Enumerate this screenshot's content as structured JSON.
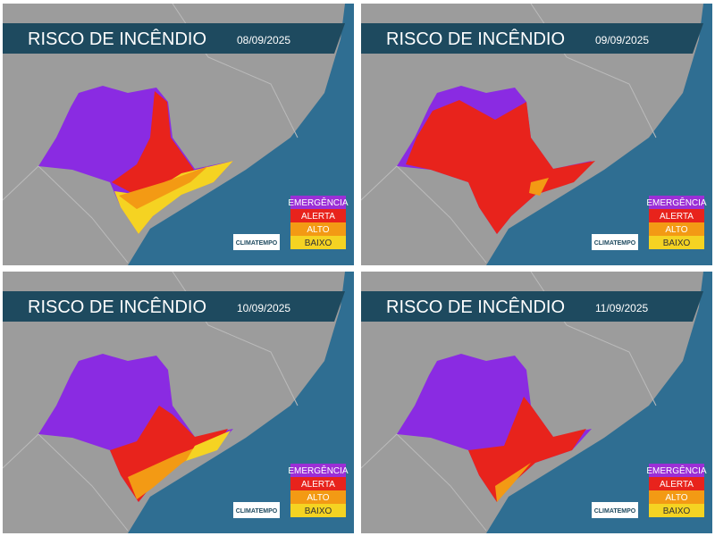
{
  "panels": [
    {
      "title": "RISCO DE INCÊNDIO",
      "date": "08/09/2025",
      "legend": [
        "EMERGÊNCIA",
        "ALERTA",
        "ALTO",
        "BAIXO"
      ],
      "logo": "CLIMATEMPO"
    },
    {
      "title": "RISCO DE INCÊNDIO",
      "date": "09/09/2025",
      "legend": [
        "EMERGÊNCIA",
        "ALERTA",
        "ALTO",
        "BAIXO"
      ],
      "logo": "CLIMATEMPO"
    },
    {
      "title": "RISCO DE INCÊNDIO",
      "date": "10/09/2025",
      "legend": [
        "EMERGÊNCIA",
        "ALERTA",
        "ALTO",
        "BAIXO"
      ],
      "logo": "CLIMATEMPO"
    },
    {
      "title": "RISCO DE INCÊNDIO",
      "date": "11/09/2025",
      "legend": [
        "EMERGÊNCIA",
        "ALERTA",
        "ALTO",
        "BAIXO"
      ],
      "logo": "CLIMATEMPO"
    }
  ]
}
